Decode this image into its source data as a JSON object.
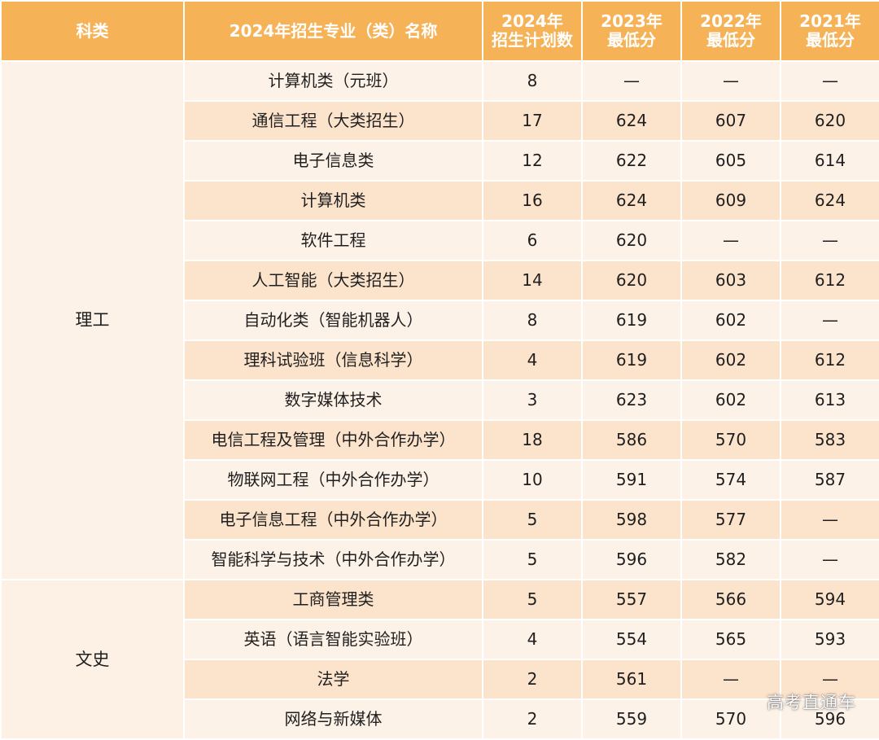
{
  "header": {
    "col_category": "科类",
    "col_major": "2024年招生专业（类）名称",
    "col_plan": "2024年\n招生计划数",
    "col_2023": "2023年\n最低分",
    "col_2022": "2022年\n最低分",
    "col_2021": "2021年\n最低分"
  },
  "groups": [
    {
      "name": "理工",
      "rows": [
        {
          "major": "计算机类（元班）",
          "plan": "8",
          "s2023": "—",
          "s2022": "—",
          "s2021": "—"
        },
        {
          "major": "通信工程（大类招生）",
          "plan": "17",
          "s2023": "624",
          "s2022": "607",
          "s2021": "620"
        },
        {
          "major": "电子信息类",
          "plan": "12",
          "s2023": "622",
          "s2022": "605",
          "s2021": "614"
        },
        {
          "major": "计算机类",
          "plan": "16",
          "s2023": "624",
          "s2022": "609",
          "s2021": "624"
        },
        {
          "major": "软件工程",
          "plan": "6",
          "s2023": "620",
          "s2022": "—",
          "s2021": "—"
        },
        {
          "major": "人工智能（大类招生）",
          "plan": "14",
          "s2023": "620",
          "s2022": "603",
          "s2021": "612"
        },
        {
          "major": "自动化类（智能机器人）",
          "plan": "8",
          "s2023": "619",
          "s2022": "602",
          "s2021": "—"
        },
        {
          "major": "理科试验班（信息科学）",
          "plan": "4",
          "s2023": "619",
          "s2022": "602",
          "s2021": "612"
        },
        {
          "major": "数字媒体技术",
          "plan": "3",
          "s2023": "623",
          "s2022": "602",
          "s2021": "613"
        },
        {
          "major": "电信工程及管理（中外合作办学）",
          "plan": "18",
          "s2023": "586",
          "s2022": "570",
          "s2021": "583"
        },
        {
          "major": "物联网工程（中外合作办学）",
          "plan": "10",
          "s2023": "591",
          "s2022": "574",
          "s2021": "587"
        },
        {
          "major": "电子信息工程（中外合作办学）",
          "plan": "5",
          "s2023": "598",
          "s2022": "577",
          "s2021": "—"
        },
        {
          "major": "智能科学与技术（中外合作办学）",
          "plan": "5",
          "s2023": "596",
          "s2022": "582",
          "s2021": "—"
        }
      ]
    },
    {
      "name": "文史",
      "rows": [
        {
          "major": "工商管理类",
          "plan": "5",
          "s2023": "557",
          "s2022": "566",
          "s2021": "594"
        },
        {
          "major": "英语（语言智能实验班）",
          "plan": "4",
          "s2023": "554",
          "s2022": "565",
          "s2021": "593"
        },
        {
          "major": "法学",
          "plan": "2",
          "s2023": "561",
          "s2022": "—",
          "s2021": "—"
        },
        {
          "major": "网络与新媒体",
          "plan": "2",
          "s2023": "559",
          "s2022": "570",
          "s2021": "596"
        }
      ]
    }
  ],
  "watermark": "高考直通车",
  "colors": {
    "header_bg": "#f6b256",
    "row_light": "#fdf2e8",
    "row_dark": "#fce3cc"
  }
}
